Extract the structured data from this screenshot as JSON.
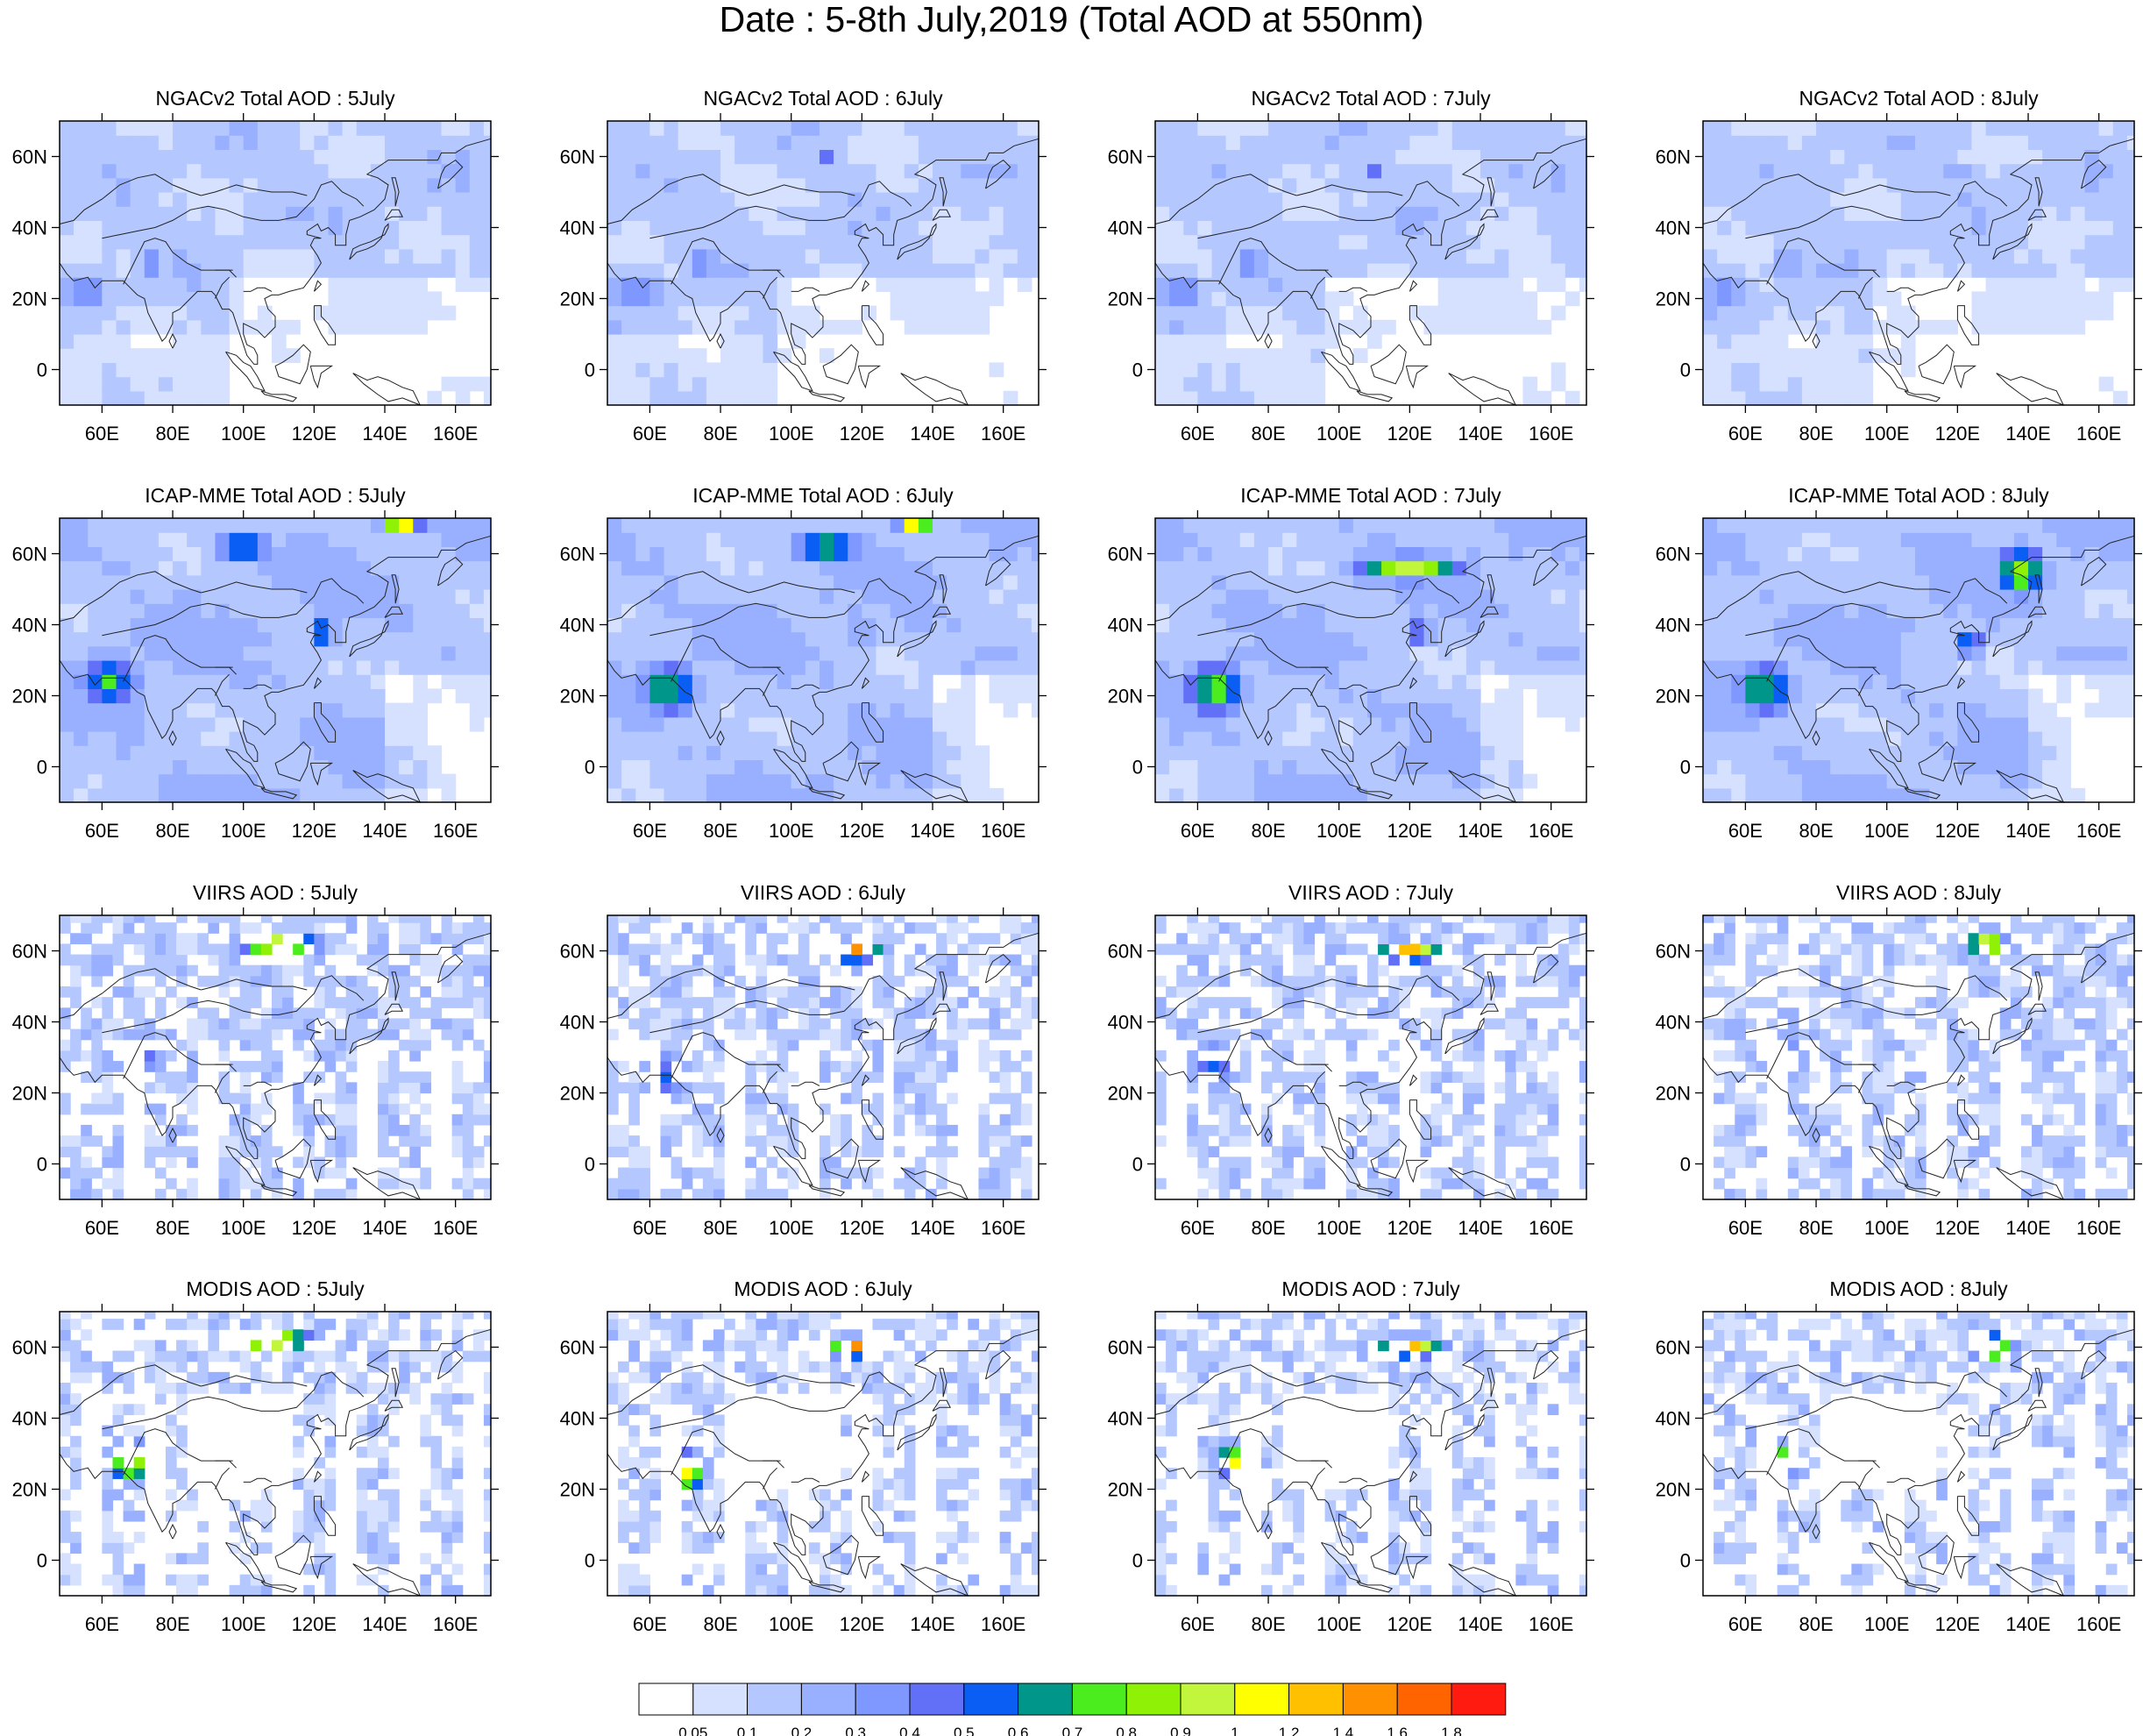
{
  "title": "Date : 5-8th July,2019 (Total AOD at 550nm)",
  "chart_data": {
    "type": "heatmap",
    "layout": "4 rows x 4 columns of gridded maps",
    "colors": {
      "land_outline": "#222222",
      "ocean_background": "#ffffff"
    },
    "x_axis": {
      "tick_values": [
        60,
        80,
        100,
        120,
        140,
        160
      ],
      "tick_labels": [
        "60E",
        "80E",
        "100E",
        "120E",
        "140E",
        "160E"
      ],
      "range": [
        48,
        170
      ]
    },
    "y_axis": {
      "tick_values": [
        0,
        20,
        40,
        60
      ],
      "tick_labels": [
        "0",
        "20N",
        "40N",
        "60N"
      ],
      "range": [
        -10,
        70
      ]
    },
    "dates": [
      "5July",
      "6July",
      "7July",
      "8July"
    ],
    "rows": [
      {
        "source": "NGACv2 Total AOD",
        "titles": [
          "NGACv2 Total AOD : 5July",
          "NGACv2 Total AOD : 6July",
          "NGACv2 Total AOD : 7July",
          "NGACv2 Total AOD : 8July"
        ]
      },
      {
        "source": "ICAP-MME Total AOD",
        "titles": [
          "ICAP-MME Total AOD : 5July",
          "ICAP-MME Total AOD : 6July",
          "ICAP-MME Total AOD : 7July",
          "ICAP-MME Total AOD : 8July"
        ]
      },
      {
        "source": "VIIRS AOD",
        "titles": [
          "VIIRS AOD : 5July",
          "VIIRS AOD : 6July",
          "VIIRS AOD : 7July",
          "VIIRS AOD : 8July"
        ]
      },
      {
        "source": "MODIS AOD",
        "titles": [
          "MODIS AOD : 5July",
          "MODIS AOD : 6July",
          "MODIS AOD : 7July",
          "MODIS AOD : 8July"
        ]
      }
    ],
    "colorbar": {
      "levels": [
        "0.05",
        "0.1",
        "0.2",
        "0.3",
        "0.4",
        "0.5",
        "0.6",
        "0.7",
        "0.8",
        "0.9",
        "1",
        "1.2",
        "1.4",
        "1.6",
        "1.8"
      ],
      "colors": [
        "#ffffff",
        "#d6e1ff",
        "#b4c8ff",
        "#98b0ff",
        "#7f98ff",
        "#6170f6",
        "#0a5ef4",
        "#00978a",
        "#4ced1e",
        "#8ff206",
        "#c2f63c",
        "#ffff00",
        "#ffc000",
        "#ff9000",
        "#ff6400",
        "#ff1b0f"
      ]
    }
  }
}
